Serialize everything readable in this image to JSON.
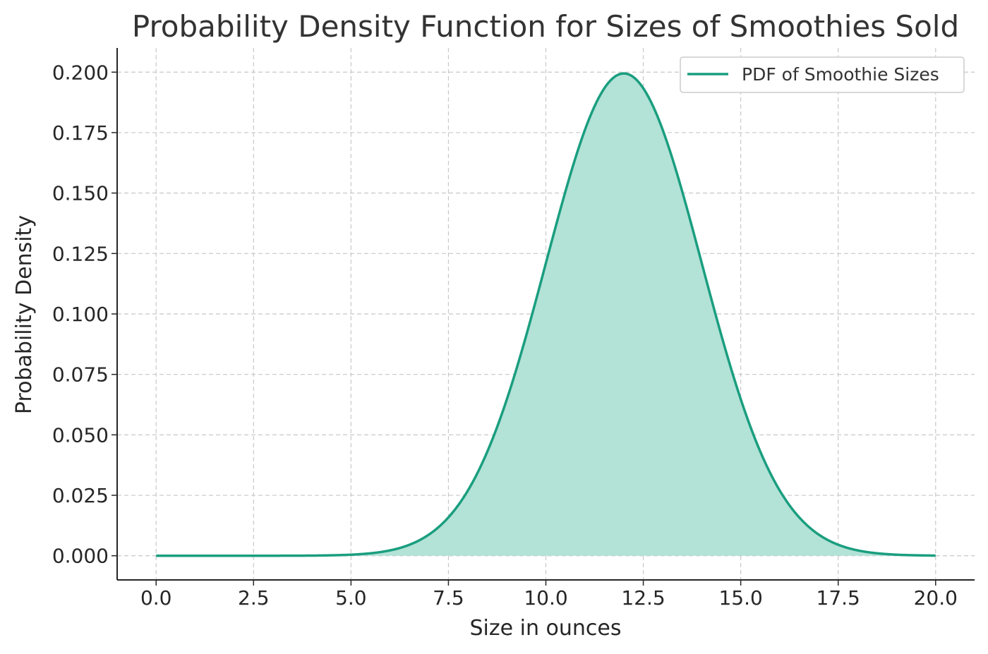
{
  "chart_data": {
    "type": "area",
    "title": "Probability Density Function for Sizes of Smoothies Sold",
    "xlabel": "Size in ounces",
    "ylabel": "Probability Density",
    "xlim": [
      -1.0,
      21.0
    ],
    "ylim": [
      -0.01,
      0.21
    ],
    "x_ticks": [
      "0.0",
      "2.5",
      "5.0",
      "7.5",
      "10.0",
      "12.5",
      "15.0",
      "17.5",
      "20.0"
    ],
    "y_ticks": [
      "0.000",
      "0.025",
      "0.050",
      "0.075",
      "0.100",
      "0.125",
      "0.150",
      "0.175",
      "0.200"
    ],
    "grid": true,
    "legend_position": "top-right",
    "series": [
      {
        "name": "PDF of Smoothie Sizes",
        "color": "#1a9e7f",
        "fill_color": "#b3e2d7",
        "distribution": "normal",
        "mean": 12,
        "std": 2,
        "x": [
          0,
          1,
          2,
          3,
          4,
          5,
          6,
          6.5,
          7,
          7.5,
          8,
          8.5,
          9,
          9.5,
          10,
          10.5,
          11,
          11.5,
          12,
          12.5,
          13,
          13.5,
          14,
          14.5,
          15,
          15.5,
          16,
          16.5,
          17,
          17.5,
          18,
          19,
          20
        ],
        "y": [
          0.0,
          0.0,
          0.0,
          0.0,
          0.0001,
          0.0004,
          0.0022,
          0.0045,
          0.0088,
          0.0158,
          0.027,
          0.0431,
          0.0648,
          0.0913,
          0.121,
          0.1506,
          0.176,
          0.1933,
          0.1995,
          0.1933,
          0.176,
          0.1506,
          0.121,
          0.0913,
          0.0648,
          0.0431,
          0.027,
          0.0158,
          0.0088,
          0.0045,
          0.0022,
          0.0004,
          0.0001
        ]
      }
    ]
  }
}
